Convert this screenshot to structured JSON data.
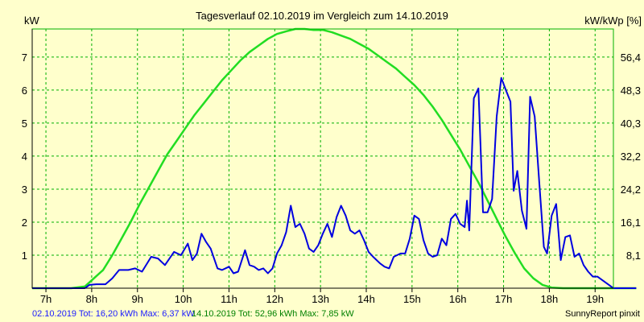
{
  "chart_data": {
    "type": "line",
    "title": "Tagesverlauf 02.10.2019 im Vergleich zum 14.10.2019",
    "ylabel_left": "kW",
    "ylabel_right": "kW/kWp [%]",
    "x_range_hours": [
      6.7,
      19.4
    ],
    "y_range_kw": [
      0,
      7.85
    ],
    "x_ticks": [
      {
        "h": 7,
        "label": "7h"
      },
      {
        "h": 8,
        "label": "8h"
      },
      {
        "h": 9,
        "label": "9h"
      },
      {
        "h": 10,
        "label": "10h"
      },
      {
        "h": 11,
        "label": "11h"
      },
      {
        "h": 12,
        "label": "12h"
      },
      {
        "h": 13,
        "label": "13h"
      },
      {
        "h": 14,
        "label": "14h"
      },
      {
        "h": 15,
        "label": "15h"
      },
      {
        "h": 16,
        "label": "16h"
      },
      {
        "h": 17,
        "label": "17h"
      },
      {
        "h": 18,
        "label": "18h"
      },
      {
        "h": 19,
        "label": "19h"
      }
    ],
    "y_ticks_left": [
      {
        "v": 1,
        "label": "1"
      },
      {
        "v": 2,
        "label": "2"
      },
      {
        "v": 3,
        "label": "3"
      },
      {
        "v": 4,
        "label": "4"
      },
      {
        "v": 5,
        "label": "5"
      },
      {
        "v": 6,
        "label": "6"
      },
      {
        "v": 7,
        "label": "7"
      }
    ],
    "y_ticks_right": [
      {
        "v": 1,
        "label": "8,1"
      },
      {
        "v": 2,
        "label": "16,1"
      },
      {
        "v": 3,
        "label": "24,2"
      },
      {
        "v": 4,
        "label": "32,2"
      },
      {
        "v": 5,
        "label": "40,3"
      },
      {
        "v": 6,
        "label": "48,3"
      },
      {
        "v": 7,
        "label": "56,4"
      }
    ],
    "grid": true,
    "colors": {
      "background": "#ffffcc",
      "grid": "#00b000",
      "series_02_10": "#0000e0",
      "series_14_10": "#22dd22"
    },
    "series": [
      {
        "key": "02.10.2019",
        "color": "#0000e0",
        "points": [
          [
            6.7,
            0
          ],
          [
            7.85,
            0
          ],
          [
            7.95,
            0.1
          ],
          [
            8.1,
            0.12
          ],
          [
            8.3,
            0.12
          ],
          [
            8.45,
            0.3
          ],
          [
            8.6,
            0.55
          ],
          [
            8.8,
            0.55
          ],
          [
            8.95,
            0.6
          ],
          [
            9.1,
            0.5
          ],
          [
            9.3,
            0.95
          ],
          [
            9.45,
            0.9
          ],
          [
            9.6,
            0.7
          ],
          [
            9.8,
            1.1
          ],
          [
            9.95,
            1.0
          ],
          [
            10.1,
            1.35
          ],
          [
            10.2,
            0.85
          ],
          [
            10.3,
            1.05
          ],
          [
            10.4,
            1.65
          ],
          [
            10.5,
            1.4
          ],
          [
            10.6,
            1.2
          ],
          [
            10.75,
            0.6
          ],
          [
            10.85,
            0.55
          ],
          [
            11.0,
            0.65
          ],
          [
            11.1,
            0.45
          ],
          [
            11.2,
            0.5
          ],
          [
            11.35,
            1.15
          ],
          [
            11.45,
            0.7
          ],
          [
            11.55,
            0.65
          ],
          [
            11.65,
            0.55
          ],
          [
            11.75,
            0.6
          ],
          [
            11.85,
            0.45
          ],
          [
            11.95,
            0.6
          ],
          [
            12.05,
            1.05
          ],
          [
            12.15,
            1.3
          ],
          [
            12.25,
            1.7
          ],
          [
            12.35,
            2.5
          ],
          [
            12.45,
            1.85
          ],
          [
            12.55,
            1.95
          ],
          [
            12.65,
            1.65
          ],
          [
            12.75,
            1.2
          ],
          [
            12.85,
            1.1
          ],
          [
            12.95,
            1.3
          ],
          [
            13.05,
            1.65
          ],
          [
            13.15,
            1.95
          ],
          [
            13.25,
            1.55
          ],
          [
            13.35,
            2.15
          ],
          [
            13.45,
            2.5
          ],
          [
            13.55,
            2.2
          ],
          [
            13.65,
            1.75
          ],
          [
            13.75,
            1.65
          ],
          [
            13.85,
            1.75
          ],
          [
            13.95,
            1.45
          ],
          [
            14.05,
            1.1
          ],
          [
            14.15,
            0.95
          ],
          [
            14.3,
            0.75
          ],
          [
            14.4,
            0.65
          ],
          [
            14.5,
            0.6
          ],
          [
            14.6,
            0.95
          ],
          [
            14.75,
            1.05
          ],
          [
            14.85,
            1.05
          ],
          [
            14.95,
            1.5
          ],
          [
            15.05,
            2.2
          ],
          [
            15.15,
            2.1
          ],
          [
            15.25,
            1.45
          ],
          [
            15.35,
            1.05
          ],
          [
            15.45,
            0.95
          ],
          [
            15.55,
            1.0
          ],
          [
            15.65,
            1.5
          ],
          [
            15.75,
            1.3
          ],
          [
            15.85,
            2.1
          ],
          [
            15.95,
            2.25
          ],
          [
            16.05,
            1.95
          ],
          [
            16.15,
            1.85
          ],
          [
            16.2,
            2.65
          ],
          [
            16.25,
            1.75
          ],
          [
            16.35,
            5.75
          ],
          [
            16.45,
            6.05
          ],
          [
            16.55,
            2.3
          ],
          [
            16.65,
            2.3
          ],
          [
            16.75,
            2.7
          ],
          [
            16.85,
            5.2
          ],
          [
            16.95,
            6.37
          ],
          [
            17.05,
            6.0
          ],
          [
            17.15,
            5.65
          ],
          [
            17.22,
            2.95
          ],
          [
            17.3,
            3.55
          ],
          [
            17.4,
            2.35
          ],
          [
            17.5,
            1.8
          ],
          [
            17.58,
            5.8
          ],
          [
            17.68,
            5.2
          ],
          [
            17.78,
            3.2
          ],
          [
            17.88,
            1.25
          ],
          [
            17.95,
            1.05
          ],
          [
            18.05,
            2.2
          ],
          [
            18.15,
            2.55
          ],
          [
            18.25,
            0.85
          ],
          [
            18.35,
            1.55
          ],
          [
            18.45,
            1.6
          ],
          [
            18.55,
            0.95
          ],
          [
            18.65,
            1.05
          ],
          [
            18.75,
            0.7
          ],
          [
            18.85,
            0.5
          ],
          [
            18.95,
            0.35
          ],
          [
            19.05,
            0.35
          ],
          [
            19.15,
            0.25
          ],
          [
            19.25,
            0.15
          ],
          [
            19.35,
            0.05
          ],
          [
            19.4,
            0
          ],
          [
            19.9,
            0
          ]
        ]
      },
      {
        "key": "14.10.2019",
        "color": "#22dd22",
        "points": [
          [
            6.7,
            0
          ],
          [
            7.55,
            0
          ],
          [
            7.85,
            0.05
          ],
          [
            8.05,
            0.3
          ],
          [
            8.25,
            0.55
          ],
          [
            8.45,
            1.0
          ],
          [
            8.65,
            1.5
          ],
          [
            8.85,
            2.0
          ],
          [
            9.05,
            2.55
          ],
          [
            9.25,
            3.05
          ],
          [
            9.45,
            3.55
          ],
          [
            9.65,
            4.05
          ],
          [
            9.85,
            4.45
          ],
          [
            10.05,
            4.85
          ],
          [
            10.25,
            5.25
          ],
          [
            10.45,
            5.6
          ],
          [
            10.65,
            5.95
          ],
          [
            10.85,
            6.3
          ],
          [
            11.05,
            6.6
          ],
          [
            11.25,
            6.9
          ],
          [
            11.45,
            7.15
          ],
          [
            11.65,
            7.35
          ],
          [
            11.85,
            7.55
          ],
          [
            12.05,
            7.7
          ],
          [
            12.25,
            7.78
          ],
          [
            12.45,
            7.85
          ],
          [
            12.65,
            7.85
          ],
          [
            12.85,
            7.82
          ],
          [
            13.05,
            7.82
          ],
          [
            13.25,
            7.75
          ],
          [
            13.45,
            7.65
          ],
          [
            13.65,
            7.55
          ],
          [
            13.85,
            7.4
          ],
          [
            14.05,
            7.25
          ],
          [
            14.25,
            7.05
          ],
          [
            14.45,
            6.85
          ],
          [
            14.65,
            6.65
          ],
          [
            14.85,
            6.4
          ],
          [
            15.05,
            6.15
          ],
          [
            15.25,
            5.85
          ],
          [
            15.45,
            5.5
          ],
          [
            15.65,
            5.1
          ],
          [
            15.85,
            4.65
          ],
          [
            16.05,
            4.2
          ],
          [
            16.25,
            3.7
          ],
          [
            16.45,
            3.2
          ],
          [
            16.65,
            2.65
          ],
          [
            16.85,
            2.1
          ],
          [
            17.05,
            1.55
          ],
          [
            17.25,
            1.05
          ],
          [
            17.45,
            0.6
          ],
          [
            17.65,
            0.3
          ],
          [
            17.85,
            0.1
          ],
          [
            18.05,
            0.02
          ],
          [
            18.3,
            0
          ],
          [
            19.9,
            0
          ]
        ]
      }
    ]
  },
  "footer": {
    "series1_summary": "02.10.2019 Tot: 16,20 kWh Max: 6,37 kW",
    "series2_summary": "14.10.2019 Tot: 52,96 kWh Max: 7,85 kW",
    "credit": "SunnyReport pinxit"
  }
}
